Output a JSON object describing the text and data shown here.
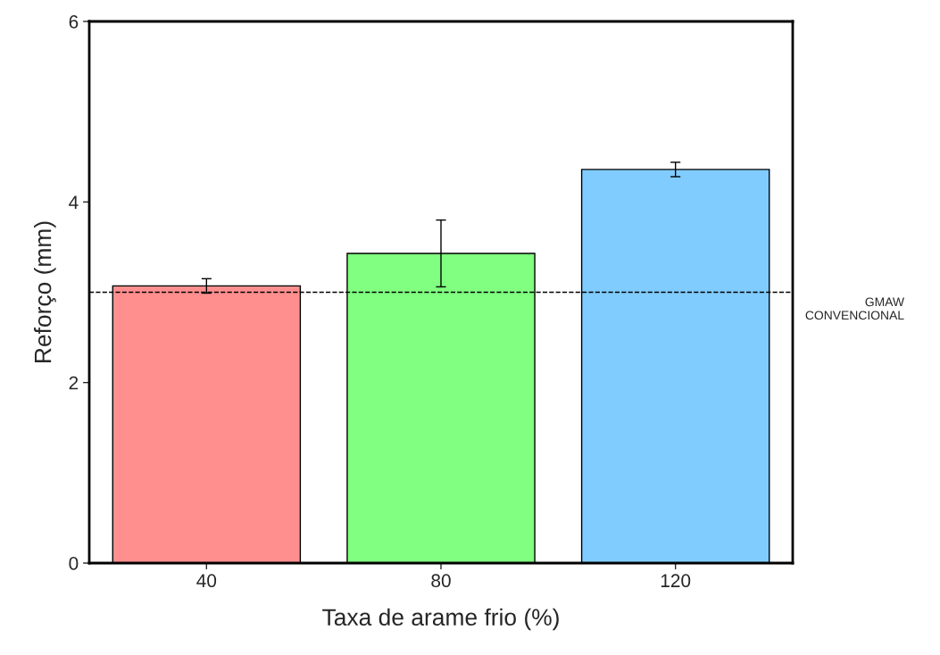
{
  "chart_data": {
    "type": "bar",
    "xlabel": "Taxa de arame frio (%)",
    "ylabel": "Reforço (mm)",
    "categories": [
      "40",
      "80",
      "120"
    ],
    "values": [
      3.07,
      3.43,
      4.36
    ],
    "errors": [
      0.08,
      0.37,
      0.08
    ],
    "colors": [
      "#ff8f8f",
      "#80ff80",
      "#80ccff"
    ],
    "ylim": [
      0,
      6
    ],
    "yticks": [
      0,
      2,
      4,
      6
    ],
    "grid": false,
    "ref_lines": [
      {
        "axis": "y",
        "value": 3.0,
        "label": "GMAW\nCONVENCIONAL",
        "color": "#000000",
        "line_style": "dashed"
      }
    ]
  }
}
